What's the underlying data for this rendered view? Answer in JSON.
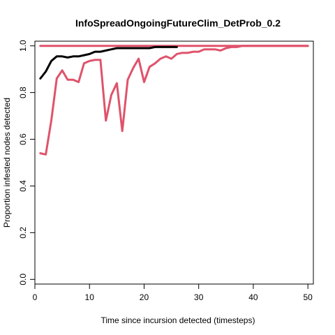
{
  "chart_data": {
    "type": "line",
    "title": "InfoSpreadOngoingFutureClim_DetProb_0.2",
    "xlabel": "Time since incursion detected (timesteps)",
    "ylabel": "Proportion infested nodes detected",
    "xlim": [
      0,
      51
    ],
    "ylim": [
      -0.02,
      1.02
    ],
    "xticks": [
      0,
      10,
      20,
      30,
      40,
      50
    ],
    "yticks": [
      0.0,
      0.2,
      0.4,
      0.6,
      0.8,
      1.0
    ],
    "ytick_labels": [
      "0.0",
      "0.2",
      "0.4",
      "0.6",
      "0.8",
      "1.0"
    ],
    "grid": false,
    "series": [
      {
        "color": "#df536b",
        "x": [
          1,
          50
        ],
        "y": [
          1.0,
          1.0
        ]
      },
      {
        "color": "#df536b",
        "x": [
          1,
          2,
          3,
          4,
          5,
          6,
          7,
          8,
          9,
          10,
          11,
          12,
          13,
          14,
          15,
          16,
          17,
          18,
          19,
          20,
          21,
          22,
          23,
          24,
          25,
          26,
          27,
          28,
          29,
          30,
          31,
          32,
          33,
          34,
          35,
          36,
          37,
          38,
          39,
          40,
          41,
          42,
          43,
          44,
          45,
          46,
          47,
          48,
          49,
          50
        ],
        "y": [
          0.54,
          0.535,
          0.68,
          0.86,
          0.895,
          0.855,
          0.855,
          0.845,
          0.925,
          0.935,
          0.94,
          0.94,
          0.68,
          0.79,
          0.84,
          0.635,
          0.855,
          0.905,
          0.945,
          0.845,
          0.91,
          0.925,
          0.945,
          0.955,
          0.945,
          0.965,
          0.97,
          0.97,
          0.975,
          0.975,
          0.985,
          0.985,
          0.985,
          0.98,
          0.99,
          0.995,
          0.995,
          1.0,
          1.0,
          1.0,
          1.0,
          1.0,
          1.0,
          1.0,
          1.0,
          1.0,
          1.0,
          1.0,
          1.0,
          1.0
        ]
      },
      {
        "color": "#000000",
        "x": [
          1,
          2,
          3,
          4,
          5,
          6,
          7,
          8,
          9,
          10,
          11,
          12,
          13,
          14,
          15,
          16,
          17,
          18,
          19,
          20,
          21,
          22,
          23,
          24,
          25,
          26
        ],
        "y": [
          0.86,
          0.89,
          0.935,
          0.955,
          0.955,
          0.95,
          0.955,
          0.955,
          0.96,
          0.965,
          0.975,
          0.975,
          0.98,
          0.985,
          0.99,
          0.99,
          0.99,
          0.99,
          0.99,
          0.99,
          0.99,
          0.995,
          0.995,
          0.995,
          0.995,
          0.995
        ]
      }
    ]
  }
}
